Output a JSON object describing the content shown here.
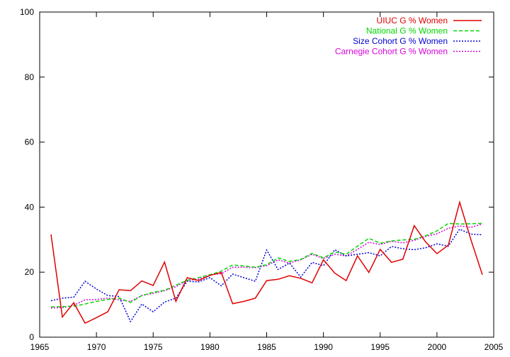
{
  "chart_data": {
    "type": "line",
    "title": "",
    "xlabel": "",
    "ylabel": "",
    "xlim": [
      1965,
      2005
    ],
    "ylim": [
      0,
      100
    ],
    "x_ticks": [
      1965,
      1970,
      1975,
      1980,
      1985,
      1990,
      1995,
      2000,
      2005
    ],
    "y_ticks": [
      0,
      20,
      40,
      60,
      80,
      100
    ],
    "grid": false,
    "legend_position": "top-right",
    "x": [
      1966,
      1967,
      1968,
      1969,
      1970,
      1971,
      1972,
      1973,
      1974,
      1975,
      1976,
      1977,
      1978,
      1979,
      1980,
      1981,
      1982,
      1983,
      1984,
      1985,
      1986,
      1987,
      1988,
      1989,
      1990,
      1991,
      1992,
      1993,
      1994,
      1995,
      1996,
      1997,
      1998,
      1999,
      2000,
      2001,
      2002,
      2003,
      2004
    ],
    "series": [
      {
        "name": "UIUC G % Women",
        "color": "#e00000",
        "dash": "solid",
        "values": [
          31.6,
          6.2,
          10.6,
          4.3,
          6.0,
          7.8,
          14.6,
          14.3,
          17.3,
          15.9,
          23.1,
          11.0,
          18.3,
          17.4,
          19.0,
          19.9,
          10.3,
          11.0,
          12.0,
          17.4,
          17.8,
          18.9,
          18.1,
          16.7,
          23.8,
          19.7,
          17.4,
          25.0,
          19.9,
          27.0,
          23.0,
          24.0,
          34.3,
          29.3,
          25.7,
          28.3,
          41.5,
          29.9,
          19.2
        ]
      },
      {
        "name": "National G % Women",
        "color": "#00d800",
        "dash": "dashed",
        "values": [
          9.3,
          9.4,
          9.5,
          10.2,
          11.0,
          11.6,
          12.0,
          10.7,
          12.8,
          13.8,
          14.4,
          16.0,
          17.5,
          18.3,
          19.2,
          20.3,
          22.2,
          21.9,
          21.5,
          22.3,
          24.4,
          23.3,
          23.9,
          25.8,
          24.4,
          26.2,
          25.5,
          28.0,
          30.4,
          28.9,
          29.6,
          29.9,
          30.1,
          31.2,
          32.7,
          35.0,
          34.8,
          34.9,
          35.0
        ]
      },
      {
        "name": "Size Cohort G % Women",
        "color": "#0000d8",
        "dash": "dotted",
        "values": [
          11.2,
          12.0,
          12.3,
          17.2,
          14.8,
          12.8,
          12.5,
          4.8,
          10.2,
          7.8,
          10.8,
          12.0,
          17.2,
          17.0,
          18.3,
          15.8,
          19.4,
          18.3,
          17.2,
          26.8,
          20.8,
          22.8,
          18.5,
          23.0,
          22.0,
          26.9,
          25.0,
          25.5,
          26.0,
          25.0,
          27.9,
          27.2,
          26.9,
          27.5,
          28.7,
          28.0,
          33.2,
          31.7,
          31.5
        ]
      },
      {
        "name": "Carnegie Cohort G % Women",
        "color": "#d800d8",
        "dash": "dotted",
        "values": [
          9.0,
          9.1,
          9.8,
          11.5,
          11.6,
          12.0,
          11.5,
          11.0,
          12.8,
          13.5,
          14.3,
          15.5,
          17.5,
          17.8,
          19.2,
          19.5,
          21.5,
          21.5,
          21.4,
          22.0,
          23.8,
          22.8,
          23.8,
          25.5,
          24.2,
          25.5,
          25.0,
          27.0,
          29.2,
          28.5,
          29.5,
          29.0,
          29.8,
          31.0,
          31.8,
          33.5,
          34.2,
          33.8,
          34.8
        ]
      }
    ]
  }
}
